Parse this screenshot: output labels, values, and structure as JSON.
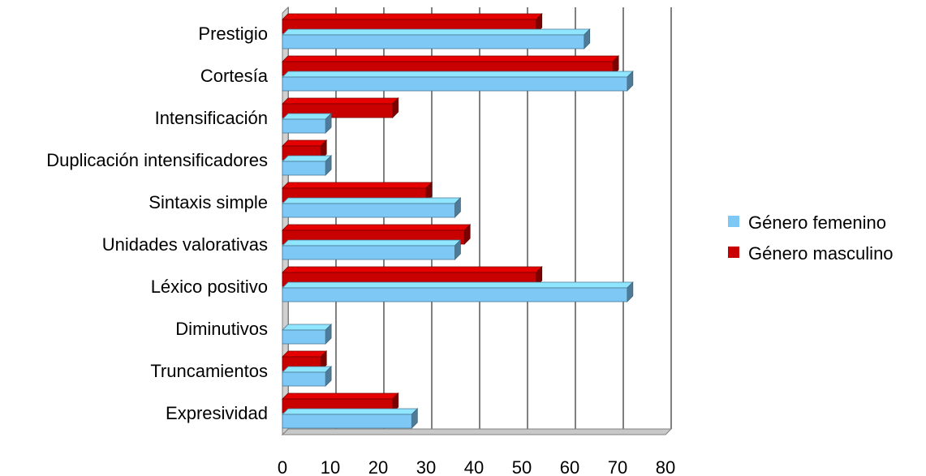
{
  "chart_data": {
    "type": "bar",
    "orientation": "horizontal",
    "categories": [
      "Prestigio",
      "Cortesía",
      "Intensificación",
      "Duplicación intensificadores",
      "Sintaxis simple",
      "Unidades valorativas",
      "Léxico positivo",
      "Diminutivos",
      "Truncamientos",
      "Expresividad"
    ],
    "series": [
      {
        "name": "Género femenino",
        "color": "#7dc8f5",
        "values": [
          63,
          72,
          9,
          9,
          36,
          36,
          72,
          9,
          9,
          27
        ]
      },
      {
        "name": "Género masculino",
        "color": "#c80000",
        "values": [
          53,
          69,
          23,
          8,
          30,
          38,
          53,
          0,
          8,
          23
        ]
      }
    ],
    "xlim": [
      0,
      80
    ],
    "xticks": [
      "0",
      "10",
      "20",
      "30",
      "40",
      "50",
      "60",
      "70",
      "80"
    ],
    "grid": true,
    "legend_position": "right"
  }
}
